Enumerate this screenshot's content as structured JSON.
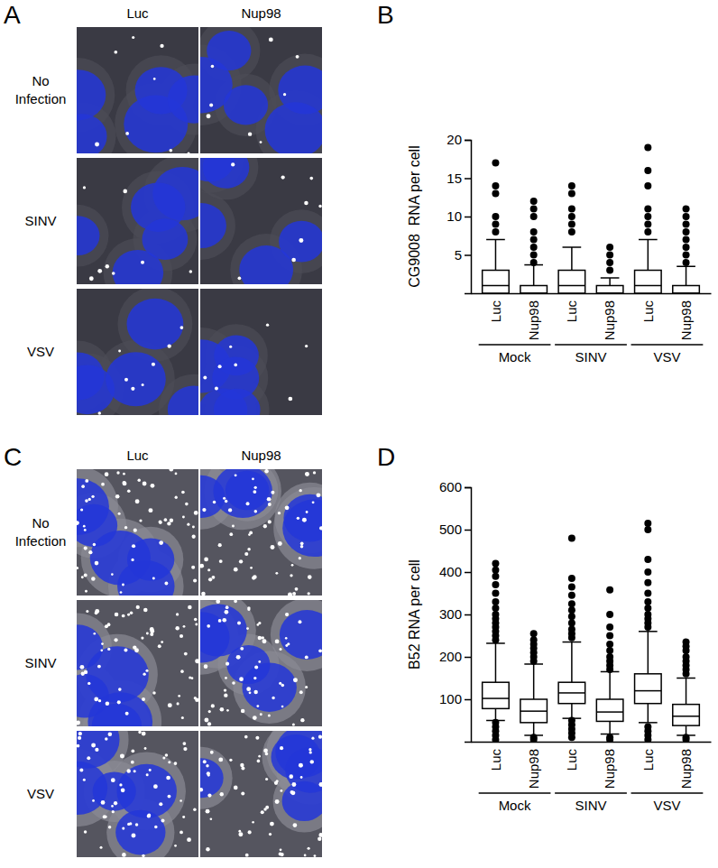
{
  "image_panels": [
    {
      "panel_label": "A",
      "columns": [
        "Luc",
        "Nup98"
      ],
      "rows": [
        "No Infection",
        "SINV",
        "VSV"
      ]
    },
    {
      "panel_label": "C",
      "columns": [
        "Luc",
        "Nup98"
      ],
      "rows": [
        "No Infection",
        "SINV",
        "VSV"
      ]
    }
  ],
  "chart_data": [
    {
      "type": "box",
      "panel_label": "B",
      "y_label": "CG9008  RNA per cell",
      "categories": [
        "Luc",
        "Nup98",
        "Luc",
        "Nup98",
        "Luc",
        "Nup98"
      ],
      "group_labels": [
        "Mock",
        "SINV",
        "VSV"
      ],
      "ylim": [
        0,
        20
      ],
      "yticks": [
        5,
        10,
        15,
        20
      ],
      "color": "#000000",
      "boxes": [
        {
          "whisker_low": 0,
          "q1": 0,
          "median": 1,
          "q3": 3,
          "whisker_high": 7,
          "outliers": [
            8,
            9,
            10,
            13,
            14,
            17
          ]
        },
        {
          "whisker_low": 0,
          "q1": 0,
          "median": 0,
          "q3": 1,
          "whisker_high": 3.7,
          "outliers": [
            4,
            5,
            6,
            7,
            8,
            10,
            11,
            12
          ]
        },
        {
          "whisker_low": 0,
          "q1": 0,
          "median": 1,
          "q3": 3,
          "whisker_high": 6,
          "outliers": [
            8,
            9,
            10,
            11,
            13,
            14
          ]
        },
        {
          "whisker_low": 0,
          "q1": 0,
          "median": 0,
          "q3": 1,
          "whisker_high": 2,
          "outliers": [
            3,
            4,
            5,
            6
          ]
        },
        {
          "whisker_low": 0,
          "q1": 0,
          "median": 1,
          "q3": 3,
          "whisker_high": 7,
          "outliers": [
            8,
            9,
            10,
            11,
            14,
            16,
            19
          ]
        },
        {
          "whisker_low": 0,
          "q1": 0,
          "median": 0,
          "q3": 1,
          "whisker_high": 3.5,
          "outliers": [
            4,
            5,
            6,
            7,
            8,
            9,
            10,
            11
          ]
        }
      ]
    },
    {
      "type": "box",
      "panel_label": "D",
      "y_label": "B52 RNA per cell",
      "categories": [
        "Luc",
        "Nup98",
        "Luc",
        "Nup98",
        "Luc",
        "Nup98"
      ],
      "group_labels": [
        "Mock",
        "SINV",
        "VSV"
      ],
      "ylim": [
        0,
        600
      ],
      "yticks": [
        100,
        200,
        300,
        400,
        500,
        600
      ],
      "color": "#000000",
      "boxes": [
        {
          "whisker_low": 50,
          "q1": 78,
          "median": 102,
          "q3": 140,
          "whisker_high": 232,
          "outliers": [
            5,
            15,
            25,
            35,
            45,
            240,
            250,
            260,
            270,
            280,
            290,
            300,
            315,
            330,
            350,
            370,
            390,
            405,
            420
          ]
        },
        {
          "whisker_low": 15,
          "q1": 45,
          "median": 72,
          "q3": 100,
          "whisker_high": 183,
          "outliers": [
            5,
            10,
            190,
            200,
            210,
            220,
            230,
            240,
            255
          ]
        },
        {
          "whisker_low": 55,
          "q1": 90,
          "median": 115,
          "q3": 140,
          "whisker_high": 235,
          "outliers": [
            10,
            20,
            30,
            40,
            50,
            245,
            255,
            265,
            280,
            295,
            310,
            325,
            345,
            365,
            385,
            480
          ]
        },
        {
          "whisker_low": 18,
          "q1": 48,
          "median": 70,
          "q3": 100,
          "whisker_high": 165,
          "outliers": [
            5,
            10,
            170,
            180,
            190,
            200,
            215,
            230,
            250,
            270,
            300,
            358
          ]
        },
        {
          "whisker_low": 45,
          "q1": 90,
          "median": 120,
          "q3": 160,
          "whisker_high": 260,
          "outliers": [
            5,
            15,
            25,
            35,
            270,
            280,
            290,
            300,
            315,
            330,
            350,
            375,
            400,
            430,
            500,
            515
          ]
        },
        {
          "whisker_low": 15,
          "q1": 38,
          "median": 60,
          "q3": 88,
          "whisker_high": 150,
          "outliers": [
            5,
            10,
            160,
            170,
            180,
            190,
            200,
            215,
            225,
            235
          ]
        }
      ]
    }
  ]
}
